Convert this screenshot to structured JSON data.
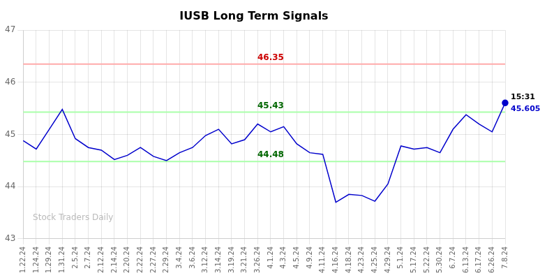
{
  "chart_data": {
    "type": "line",
    "title": "IUSB Long Term Signals",
    "categories": [
      "1.22.24",
      "1.24.24",
      "1.29.24",
      "1.31.24",
      "2.5.24",
      "2.7.24",
      "2.12.24",
      "2.14.24",
      "2.20.24",
      "2.22.24",
      "2.27.24",
      "2.29.24",
      "3.4.24",
      "3.6.24",
      "3.12.24",
      "3.14.24",
      "3.19.24",
      "3.21.24",
      "3.26.24",
      "4.1.24",
      "4.3.24",
      "4.5.24",
      "4.9.24",
      "4.11.24",
      "4.16.24",
      "4.18.24",
      "4.23.24",
      "4.25.24",
      "4.29.24",
      "5.1.24",
      "5.17.24",
      "5.22.24",
      "5.30.24",
      "6.7.24",
      "6.13.24",
      "6.17.24",
      "6.26.24",
      "7.8.24"
    ],
    "series": [
      {
        "values": [
          44.88,
          44.72,
          45.1,
          45.48,
          44.92,
          44.75,
          44.7,
          44.52,
          44.6,
          44.75,
          44.58,
          44.5,
          44.65,
          44.75,
          44.98,
          45.1,
          44.82,
          44.9,
          45.2,
          45.05,
          45.15,
          44.82,
          44.65,
          44.62,
          43.7,
          43.85,
          43.83,
          43.72,
          44.05,
          44.78,
          44.72,
          44.75,
          44.65,
          45.1,
          45.38,
          45.2,
          45.05,
          45.605
        ],
        "color": "#0000cc"
      }
    ],
    "ylim": [
      43,
      47
    ],
    "yticks": [
      43,
      44,
      45,
      46,
      47
    ],
    "grid": true,
    "annotations": [
      {
        "type": "hline",
        "value": 46.35,
        "label": "46.35",
        "color": "#ffaaaa",
        "label_color": "#cc0000"
      },
      {
        "type": "hline",
        "value": 45.43,
        "label": "45.43",
        "color": "#aaffaa",
        "label_color": "#006600"
      },
      {
        "type": "hline",
        "value": 44.48,
        "label": "44.48",
        "color": "#aaffaa",
        "label_color": "#006600"
      },
      {
        "type": "text",
        "text": "15:31",
        "x": "7.8.24",
        "y": 45.605,
        "color": "#000000"
      },
      {
        "type": "text",
        "text": "45.605",
        "x": "7.8.24",
        "y": 45.605,
        "color": "#0000cc"
      },
      {
        "type": "watermark",
        "text": "Stock Traders Daily",
        "color": "#bbbbbb"
      }
    ]
  }
}
